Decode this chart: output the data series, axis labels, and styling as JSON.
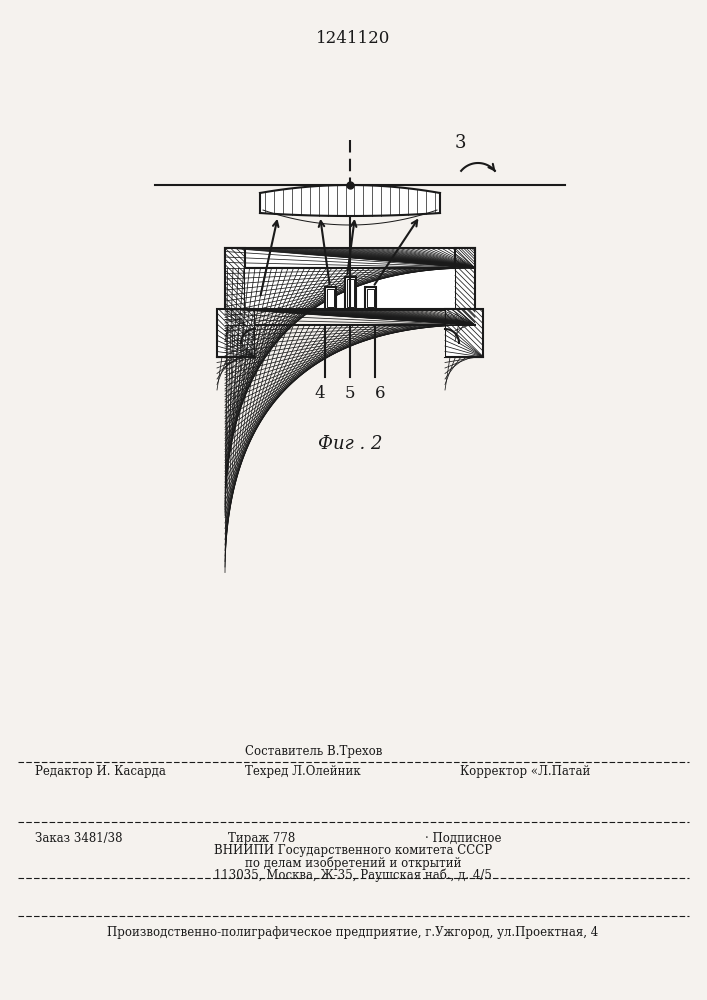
{
  "patent_number": "1241120",
  "fig_caption": "Фиг . 2",
  "label_3": "3",
  "label_4": "4",
  "label_5": "5",
  "label_6": "6",
  "bg_color": "#f5f2ee",
  "line_color": "#1a1a1a",
  "editor1": "Редактор И. Касарда",
  "comp1": "Составитель В.Трехов",
  "tech1": "Техред Л.Олейник",
  "corr1": "Корректор «Л.Патай",
  "order": "Заказ 3481/38",
  "tirazh": "Тираж 778",
  "podp": "· Подписное",
  "vniip1": "ВНИИПИ Государственного комитета СССР",
  "vniip2": "по делам изобретений и открытий",
  "vniip3": "113035, Москва, Ж-35, Раушская наб., д. 4/5",
  "prod": "Производственно-полиграфическое предприятие, г.Ужгород, ул.Проектная, 4"
}
